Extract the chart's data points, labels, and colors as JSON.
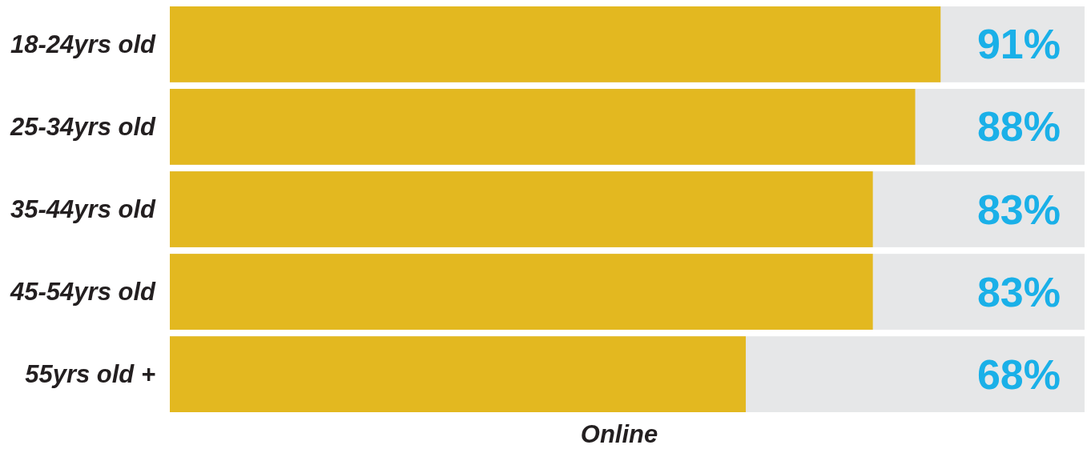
{
  "chart_data": {
    "type": "bar",
    "orientation": "horizontal",
    "xlabel": "Online",
    "categories": [
      "18-24yrs old",
      "25-34yrs old",
      "35-44yrs old",
      "45-54yrs old",
      "55yrs old +"
    ],
    "values": [
      91,
      88,
      83,
      83,
      68
    ],
    "value_labels": [
      "91%",
      "88%",
      "83%",
      "83%",
      "68%"
    ],
    "color": "#e3b820",
    "xlim": [
      0,
      108
    ],
    "tick_labels": "y"
  }
}
